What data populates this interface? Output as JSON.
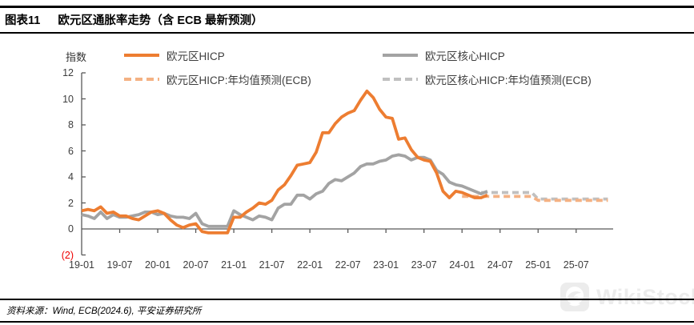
{
  "header": {
    "figure_label": "图表11",
    "title": "欧元区通胀率走势（含 ECB 最新预测）"
  },
  "chart_data": {
    "type": "line",
    "title": "欧元区通胀率走势（含 ECB 最新预测）",
    "unit_label": "指数",
    "ylim": [
      -2,
      12
    ],
    "grid": false,
    "legend_position": "top",
    "axis_color": "#595959",
    "negative_tick_color": "#ee0000",
    "y_tick_labels": [
      "12",
      "10",
      "8",
      "6",
      "4",
      "2",
      "0",
      "(2)"
    ],
    "y_tick_values": [
      12,
      10,
      8,
      6,
      4,
      2,
      0,
      -2
    ],
    "x_tick_labels": [
      "19-01",
      "19-07",
      "20-01",
      "20-07",
      "21-01",
      "21-07",
      "22-01",
      "22-07",
      "23-01",
      "23-07",
      "24-01",
      "24-07",
      "25-01",
      "25-07"
    ],
    "x_start_month": "2019-01",
    "x_end_month": "2026-01",
    "months_per_tick": 6,
    "series": [
      {
        "name": "欧元区HICP",
        "color": "#ED7D31",
        "style": "solid",
        "start": "2019-01",
        "values": [
          1.4,
          1.5,
          1.4,
          1.7,
          1.2,
          1.3,
          1.0,
          1.0,
          0.8,
          0.7,
          1.0,
          1.3,
          1.4,
          1.2,
          0.7,
          0.3,
          0.1,
          0.3,
          0.4,
          -0.2,
          -0.3,
          -0.3,
          -0.3,
          -0.3,
          0.9,
          0.9,
          1.3,
          1.6,
          2.0,
          1.9,
          2.2,
          3.0,
          3.4,
          4.1,
          4.9,
          5.0,
          5.1,
          5.9,
          7.4,
          7.4,
          8.1,
          8.6,
          8.9,
          9.1,
          9.9,
          10.6,
          10.1,
          9.2,
          8.6,
          8.5,
          6.9,
          7.0,
          6.1,
          5.5,
          5.3,
          5.2,
          4.3,
          2.9,
          2.4,
          2.9,
          2.8,
          2.6,
          2.4,
          2.4,
          2.6
        ]
      },
      {
        "name": "欧元区核心HICP",
        "color": "#A3A3A3",
        "style": "solid",
        "start": "2019-01",
        "values": [
          1.1,
          1.0,
          0.8,
          1.3,
          0.8,
          1.1,
          0.9,
          0.9,
          1.0,
          1.1,
          1.3,
          1.3,
          1.1,
          1.2,
          1.0,
          0.9,
          0.9,
          0.8,
          1.2,
          0.4,
          0.2,
          0.2,
          0.2,
          0.2,
          1.4,
          1.1,
          0.9,
          0.7,
          1.0,
          0.9,
          0.7,
          1.6,
          1.9,
          1.9,
          2.6,
          2.6,
          2.3,
          2.7,
          2.9,
          3.5,
          3.8,
          3.7,
          4.0,
          4.3,
          4.8,
          5.0,
          5.0,
          5.2,
          5.3,
          5.6,
          5.7,
          5.6,
          5.3,
          5.5,
          5.5,
          5.3,
          4.5,
          4.2,
          3.6,
          3.4,
          3.3,
          3.1,
          2.9,
          2.7,
          2.9
        ]
      },
      {
        "name": "欧元区HICP:年均值预测(ECB)",
        "color": "#F4B183",
        "style": "dashed",
        "start": "2024-01",
        "values": [
          2.5,
          2.5,
          2.5,
          2.5,
          2.5,
          2.5,
          2.5,
          2.5,
          2.5,
          2.5,
          2.5,
          2.5,
          2.2,
          2.2,
          2.2,
          2.2,
          2.2,
          2.2,
          2.2,
          2.2,
          2.2,
          2.2,
          2.2,
          2.2
        ]
      },
      {
        "name": "欧元区核心HICP:年均值预测(ECB)",
        "color": "#C0C0C0",
        "style": "dashed",
        "start": "2024-04",
        "values": [
          2.8,
          2.8,
          2.8,
          2.8,
          2.8,
          2.8,
          2.8,
          2.8,
          2.8,
          2.3,
          2.3,
          2.3,
          2.3,
          2.3,
          2.3,
          2.3,
          2.3,
          2.3,
          2.3,
          2.3,
          2.3
        ]
      }
    ]
  },
  "footer": {
    "source": "资料来源：Wind, ECB(2024.6), 平安证券研究所"
  },
  "watermark": {
    "text": "WikiStock"
  }
}
